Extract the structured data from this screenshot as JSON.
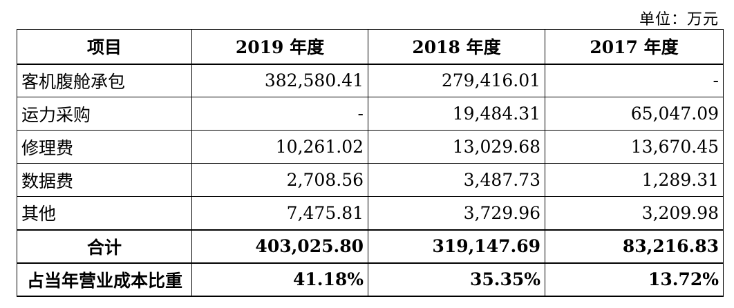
{
  "unit_label": "单位：万元",
  "table": {
    "headers": [
      "项目",
      "2019 年度",
      "2018 年度",
      "2017 年度"
    ],
    "rows": [
      {
        "label": "客机腹舱承包",
        "values": [
          "382,580.41",
          "279,416.01",
          "-"
        ]
      },
      {
        "label": "运力采购",
        "values": [
          "-",
          "19,484.31",
          "65,047.09"
        ]
      },
      {
        "label": "修理费",
        "values": [
          "10,261.02",
          "13,029.68",
          "13,670.45"
        ]
      },
      {
        "label": "数据费",
        "values": [
          "2,708.56",
          "3,487.73",
          "1,289.31"
        ]
      },
      {
        "label": "其他",
        "values": [
          "7,475.81",
          "3,729.96",
          "3,209.98"
        ]
      }
    ],
    "total": {
      "label": "合计",
      "values": [
        "403,025.80",
        "319,147.69",
        "83,216.83"
      ]
    },
    "ratio": {
      "label": "占当年营业成本比重",
      "values": [
        "41.18%",
        "35.35%",
        "13.72%"
      ]
    }
  }
}
